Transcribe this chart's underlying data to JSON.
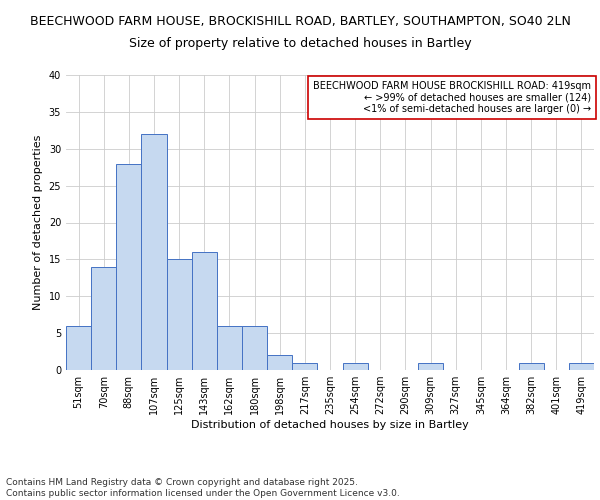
{
  "title_line1": "BEECHWOOD FARM HOUSE, BROCKISHILL ROAD, BARTLEY, SOUTHAMPTON, SO40 2LN",
  "title_line2": "Size of property relative to detached houses in Bartley",
  "xlabel": "Distribution of detached houses by size in Bartley",
  "ylabel": "Number of detached properties",
  "categories": [
    "51sqm",
    "70sqm",
    "88sqm",
    "107sqm",
    "125sqm",
    "143sqm",
    "162sqm",
    "180sqm",
    "198sqm",
    "217sqm",
    "235sqm",
    "254sqm",
    "272sqm",
    "290sqm",
    "309sqm",
    "327sqm",
    "345sqm",
    "364sqm",
    "382sqm",
    "401sqm",
    "419sqm"
  ],
  "values": [
    6,
    14,
    28,
    32,
    15,
    16,
    6,
    6,
    2,
    1,
    0,
    1,
    0,
    0,
    1,
    0,
    0,
    0,
    1,
    0,
    1
  ],
  "bar_color": "#c6d9f0",
  "bar_edge_color": "#4472c4",
  "ylim": [
    0,
    40
  ],
  "yticks": [
    0,
    5,
    10,
    15,
    20,
    25,
    30,
    35,
    40
  ],
  "annotation_line1": "BEECHWOOD FARM HOUSE BROCKISHILL ROAD: 419sqm",
  "annotation_line2": "← >99% of detached houses are smaller (124)",
  "annotation_line3": "<1% of semi-detached houses are larger (0) →",
  "annotation_box_color": "#cc0000",
  "annotation_box_bg": "#ffffff",
  "footer_text": "Contains HM Land Registry data © Crown copyright and database right 2025.\nContains public sector information licensed under the Open Government Licence v3.0.",
  "title_fontsize": 9,
  "subtitle_fontsize": 9,
  "axis_label_fontsize": 8,
  "tick_fontsize": 7,
  "annotation_fontsize": 7,
  "footer_fontsize": 6.5
}
